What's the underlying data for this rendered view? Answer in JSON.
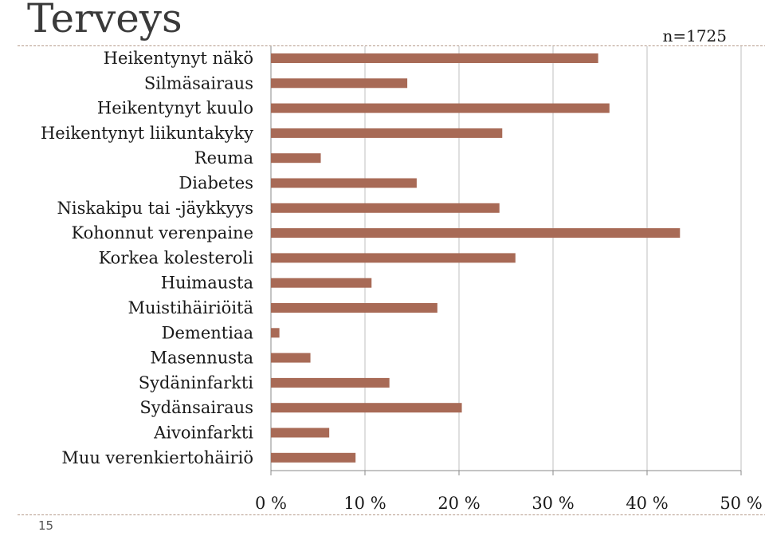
{
  "slide": {
    "title": "Terveys",
    "sample_size": "n=1725",
    "page_number": "15"
  },
  "colors": {
    "bar": "#a86a56",
    "grid": "#bfbfbf",
    "axis": "#888888"
  },
  "chart_data": {
    "type": "bar",
    "orientation": "horizontal",
    "categories": [
      "Heikentynyt näkö",
      "Silmäsairaus",
      "Heikentynyt kuulo",
      "Heikentynyt liikuntakyky",
      "Reuma",
      "Diabetes",
      "Niskakipu tai -jäykkyys",
      "Kohonnut verenpaine",
      "Korkea kolesteroli",
      "Huimausta",
      "Muistihäiriöitä",
      "Dementiaa",
      "Masennusta",
      "Sydäninfarkti",
      "Sydänsairaus",
      "Aivoinfarkti",
      "Muu verenkiertohäiriö"
    ],
    "values": [
      34.8,
      14.5,
      36.0,
      24.6,
      5.3,
      15.5,
      24.3,
      43.5,
      26.0,
      10.7,
      17.7,
      0.9,
      4.2,
      12.6,
      20.3,
      6.2,
      9.0
    ],
    "xlim": [
      0,
      50
    ],
    "xticks": [
      0,
      10,
      20,
      30,
      40,
      50
    ],
    "xtick_labels": [
      "0 %",
      "10 %",
      "20 %",
      "30 %",
      "40 %",
      "50 %"
    ],
    "grid": "vertical"
  }
}
